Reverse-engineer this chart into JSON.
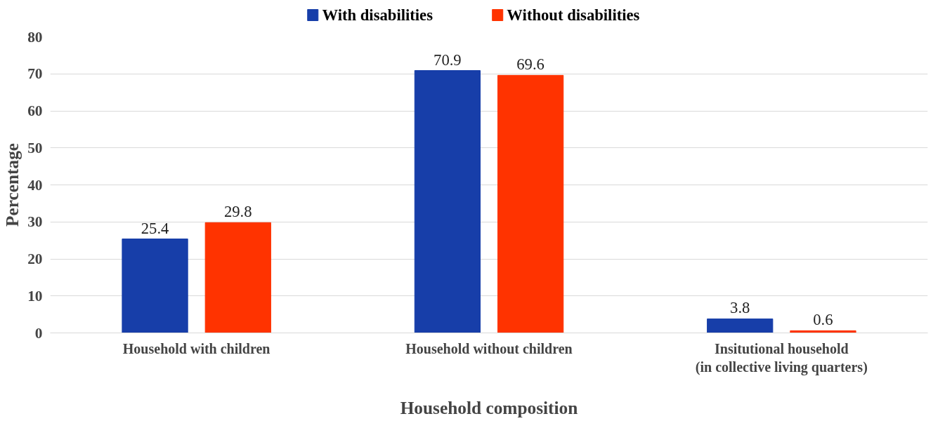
{
  "chart_data": {
    "type": "bar",
    "xlabel": "Household composition",
    "ylabel": "Percentage",
    "categories": [
      "Household with children",
      "Household without children",
      "Insitutional household\n(in collective living quarters)"
    ],
    "series": [
      {
        "name": "With disabilities",
        "color": "#173ea9",
        "values": [
          25.4,
          70.9,
          3.8
        ]
      },
      {
        "name": "Without disabilities",
        "color": "#ff3300",
        "values": [
          29.8,
          69.6,
          0.6
        ]
      }
    ],
    "ylim": [
      0,
      80
    ],
    "yticks": [
      0,
      10,
      20,
      30,
      40,
      50,
      60,
      70,
      80
    ],
    "grid": "y",
    "legend": "top",
    "data_labels": true
  }
}
